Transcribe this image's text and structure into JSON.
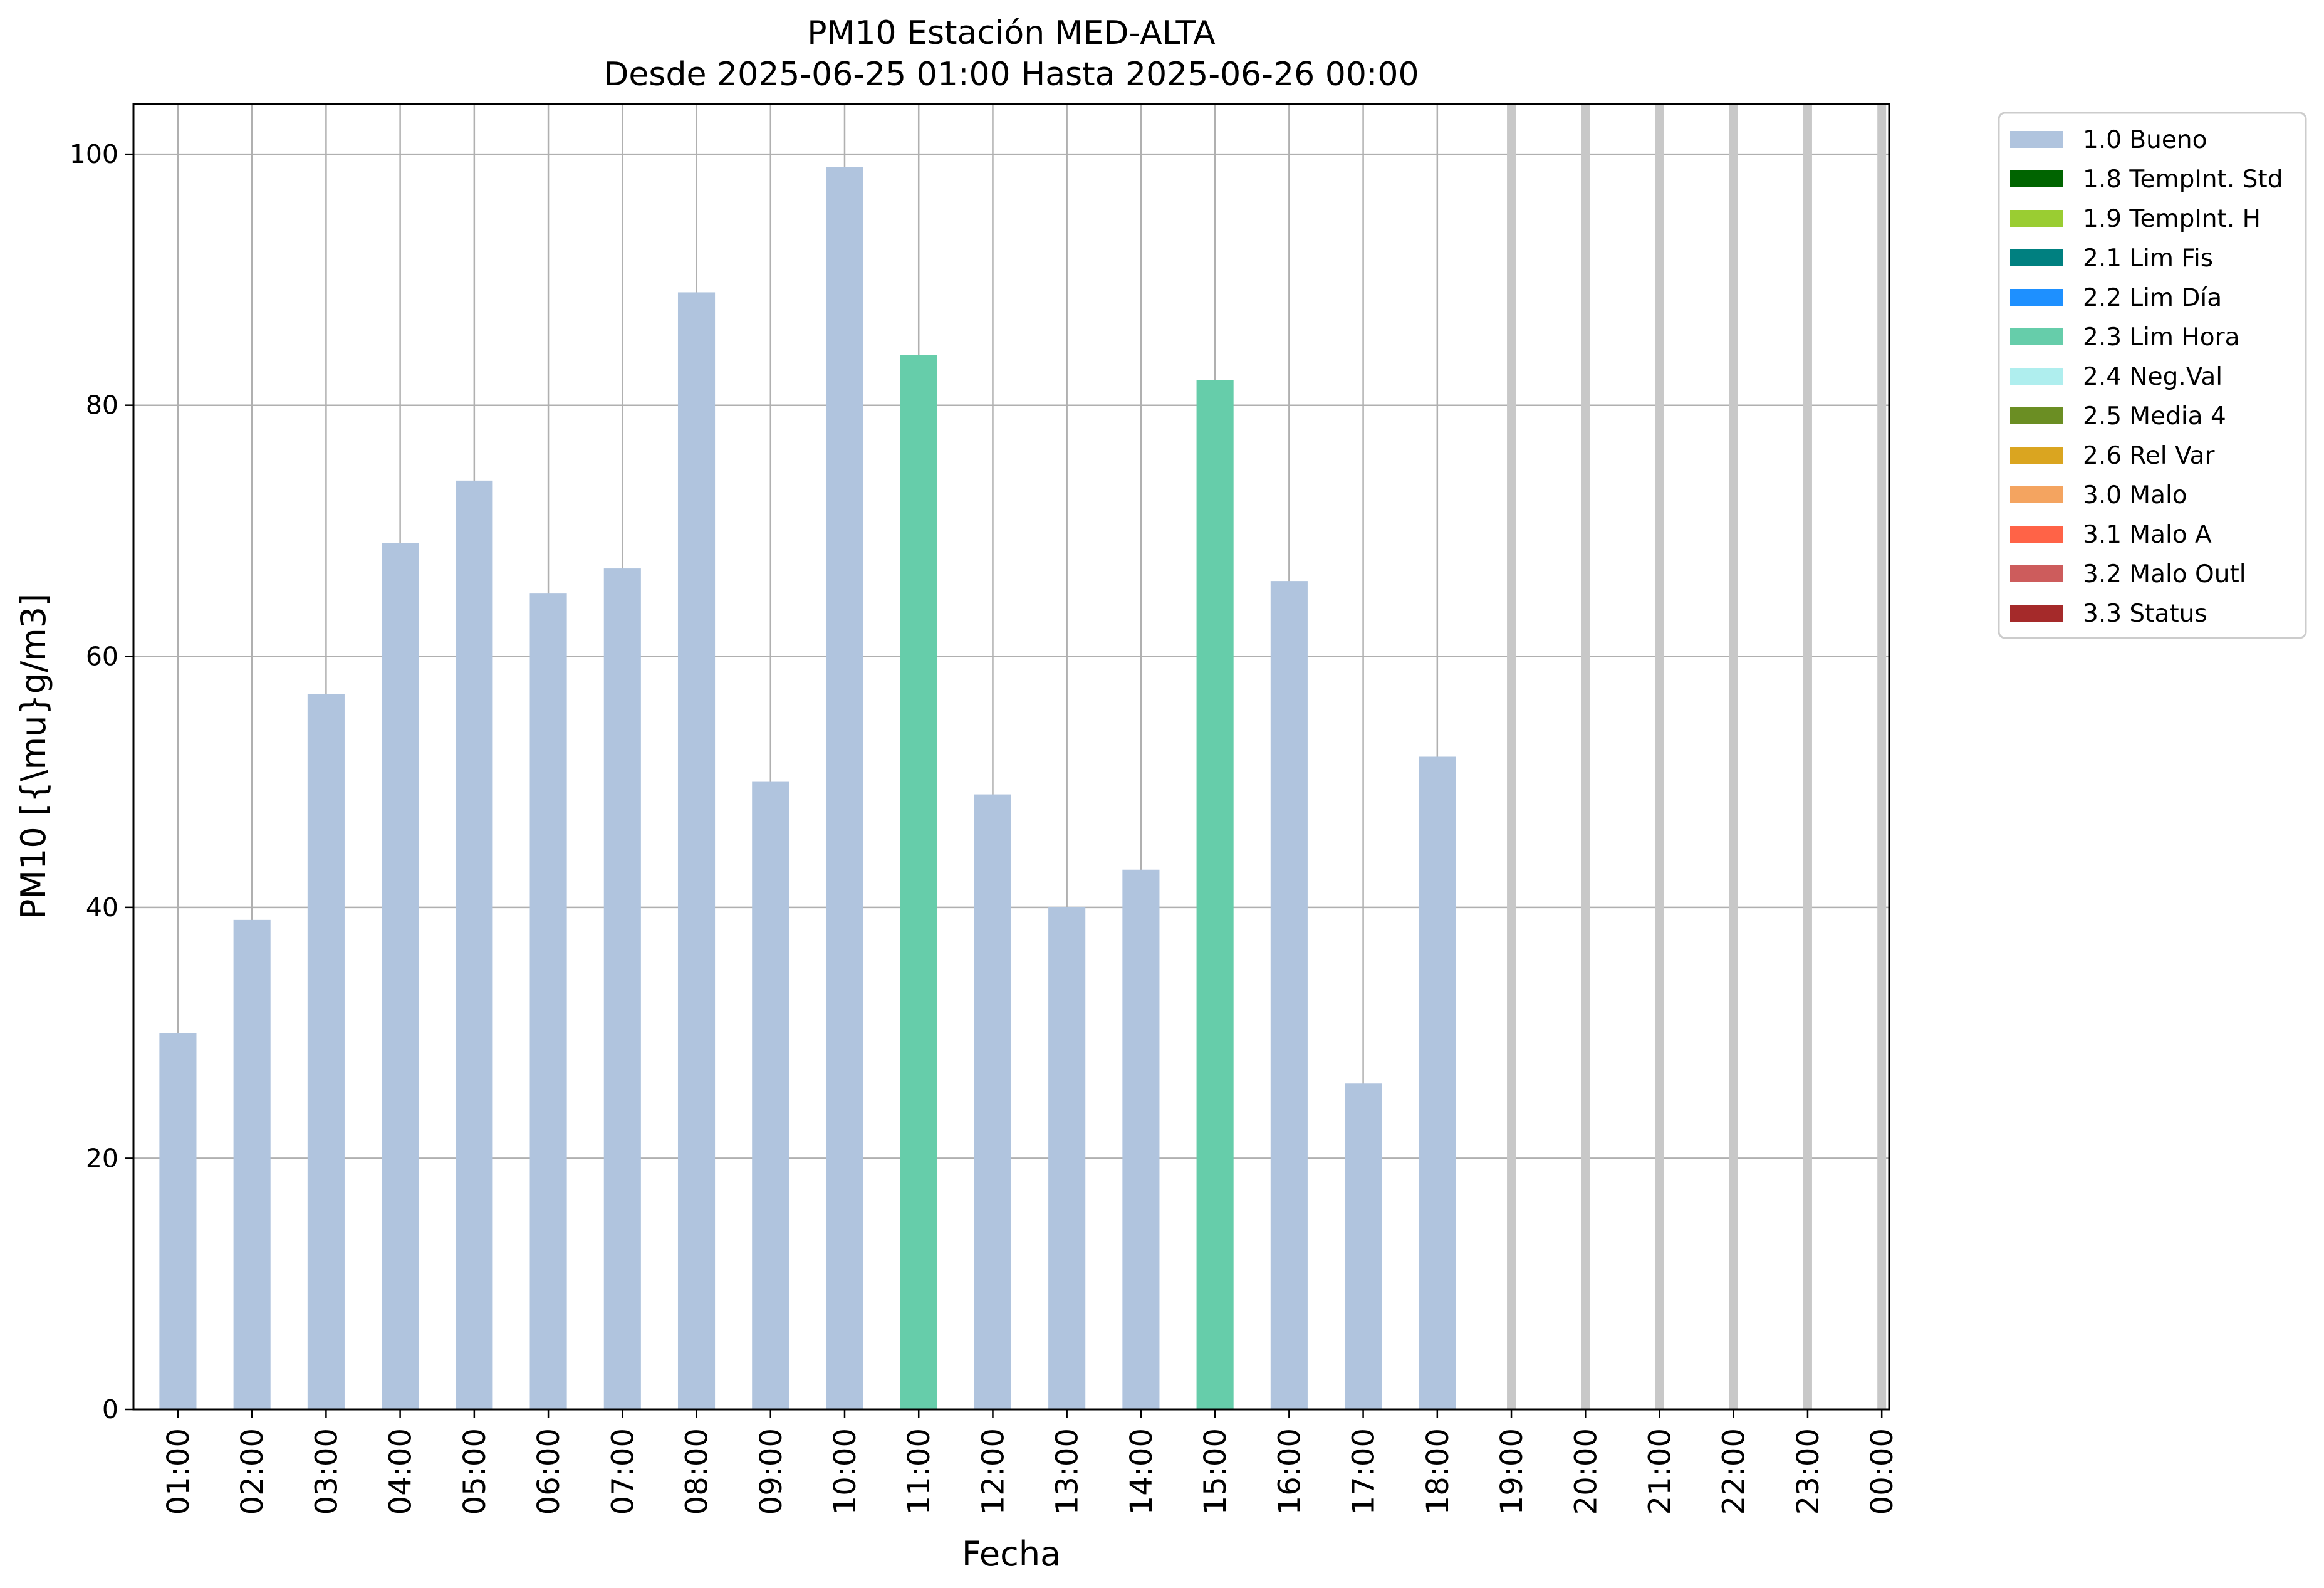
{
  "chart_data": {
    "type": "bar",
    "title": "PM10 Estación MED-ALTA",
    "subtitle": "Desde 2025-06-25 01:00 Hasta 2025-06-26 00:00",
    "xlabel": "Fecha",
    "ylabel": "PM10 [{\\mu}g/m3]",
    "ylim": [
      0,
      104
    ],
    "yticks": [
      0,
      20,
      40,
      60,
      80,
      100
    ],
    "grid": true,
    "legend_position": "outside-top-right",
    "categories": [
      "01:00",
      "02:00",
      "03:00",
      "04:00",
      "05:00",
      "06:00",
      "07:00",
      "08:00",
      "09:00",
      "10:00",
      "11:00",
      "12:00",
      "13:00",
      "14:00",
      "15:00",
      "16:00",
      "17:00",
      "18:00",
      "19:00",
      "20:00",
      "21:00",
      "22:00",
      "23:00",
      "00:00"
    ],
    "values": [
      30,
      39,
      57,
      69,
      74,
      65,
      67,
      89,
      50,
      99,
      84,
      49,
      40,
      43,
      82,
      66,
      26,
      52,
      null,
      null,
      null,
      null,
      null,
      null
    ],
    "flags": [
      "1.0 Bueno",
      "1.0 Bueno",
      "1.0 Bueno",
      "1.0 Bueno",
      "1.0 Bueno",
      "1.0 Bueno",
      "1.0 Bueno",
      "1.0 Bueno",
      "1.0 Bueno",
      "1.0 Bueno",
      "2.3 Lim Hora",
      "1.0 Bueno",
      "1.0 Bueno",
      "1.0 Bueno",
      "2.3 Lim Hora",
      "1.0 Bueno",
      "1.0 Bueno",
      "1.0 Bueno",
      null,
      null,
      null,
      null,
      null,
      null
    ],
    "missing_color": "#c8c8c8",
    "legend": [
      {
        "label": "1.0 Bueno",
        "color": "#b0c4de"
      },
      {
        "label": "1.8 TempInt. Std",
        "color": "#006400"
      },
      {
        "label": "1.9 TempInt. H",
        "color": "#9acd32"
      },
      {
        "label": "2.1 Lim Fis",
        "color": "#008080"
      },
      {
        "label": "2.2 Lim Día",
        "color": "#1e90ff"
      },
      {
        "label": "2.3 Lim Hora",
        "color": "#66cdaa"
      },
      {
        "label": "2.4 Neg.Val",
        "color": "#afeeee"
      },
      {
        "label": "2.5 Media 4",
        "color": "#6b8e23"
      },
      {
        "label": "2.6 Rel Var",
        "color": "#daa520"
      },
      {
        "label": "3.0 Malo",
        "color": "#f4a460"
      },
      {
        "label": "3.1 Malo A",
        "color": "#ff6347"
      },
      {
        "label": "3.2 Malo Outl",
        "color": "#cd5c5c"
      },
      {
        "label": "3.3 Status",
        "color": "#a52a2a"
      }
    ]
  }
}
